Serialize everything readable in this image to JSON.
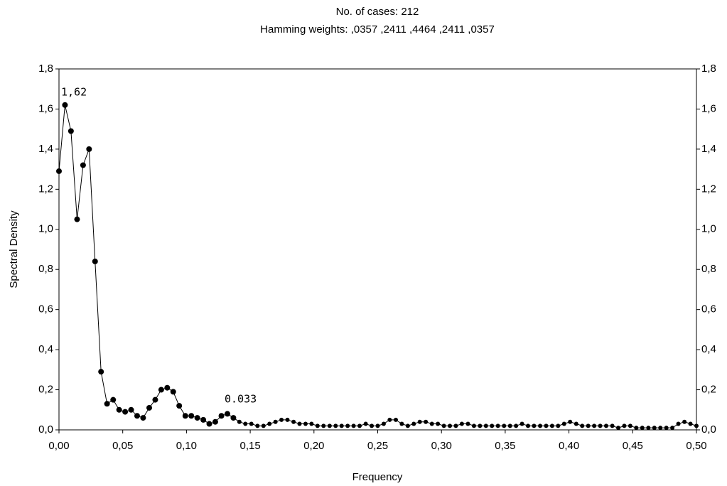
{
  "chart_data": {
    "type": "line",
    "title": "No. of cases: 212",
    "subtitle": "Hamming weights: ,0357 ,2411 ,4464 ,2411 ,0357",
    "x_label": "Frequency",
    "y_label": "Spectral Density",
    "annotations": [
      "1,62",
      "0.033"
    ],
    "color": "#000000",
    "x": [
      0,
      0.0047,
      0.0094,
      0.0142,
      0.0189,
      0.0236,
      0.0283,
      0.033,
      0.0377,
      0.0425,
      0.0472,
      0.0519,
      0.0566,
      0.0613,
      0.066,
      0.0708,
      0.0755,
      0.0802,
      0.0849,
      0.0896,
      0.0943,
      0.0991,
      0.1038,
      0.1085,
      0.1132,
      0.1179,
      0.1226,
      0.1274,
      0.1321,
      0.1368,
      0.1415,
      0.1462,
      0.1509,
      0.1557,
      0.1604,
      0.1651,
      0.1698,
      0.1745,
      0.1792,
      0.184,
      0.1887,
      0.1934,
      0.1981,
      0.2028,
      0.2075,
      0.2123,
      0.217,
      0.2217,
      0.2264,
      0.2311,
      0.2358,
      0.2406,
      0.2453,
      0.25,
      0.2547,
      0.2594,
      0.2642,
      0.2689,
      0.2736,
      0.2783,
      0.283,
      0.2877,
      0.2925,
      0.2972,
      0.3019,
      0.3066,
      0.3113,
      0.316,
      0.3208,
      0.3255,
      0.3302,
      0.3349,
      0.3396,
      0.3443,
      0.3491,
      0.3538,
      0.3585,
      0.3632,
      0.3679,
      0.3726,
      0.3774,
      0.3821,
      0.3868,
      0.3915,
      0.3962,
      0.4009,
      0.4057,
      0.4104,
      0.4151,
      0.4198,
      0.4245,
      0.4292,
      0.434,
      0.4387,
      0.4434,
      0.4481,
      0.4528,
      0.4575,
      0.4623,
      0.467,
      0.4717,
      0.4764,
      0.4811,
      0.4858,
      0.4906,
      0.4953,
      0.5
    ],
    "values": [
      1.29,
      1.62,
      1.49,
      1.05,
      1.32,
      1.4,
      0.84,
      0.29,
      0.13,
      0.15,
      0.1,
      0.09,
      0.1,
      0.07,
      0.06,
      0.11,
      0.15,
      0.2,
      0.21,
      0.19,
      0.12,
      0.07,
      0.07,
      0.06,
      0.05,
      0.03,
      0.04,
      0.07,
      0.08,
      0.06,
      0.04,
      0.03,
      0.03,
      0.02,
      0.02,
      0.03,
      0.04,
      0.05,
      0.05,
      0.04,
      0.03,
      0.03,
      0.03,
      0.02,
      0.02,
      0.02,
      0.02,
      0.02,
      0.02,
      0.02,
      0.02,
      0.03,
      0.02,
      0.02,
      0.03,
      0.05,
      0.05,
      0.03,
      0.02,
      0.03,
      0.04,
      0.04,
      0.03,
      0.03,
      0.02,
      0.02,
      0.02,
      0.03,
      0.03,
      0.02,
      0.02,
      0.02,
      0.02,
      0.02,
      0.02,
      0.02,
      0.02,
      0.03,
      0.02,
      0.02,
      0.02,
      0.02,
      0.02,
      0.02,
      0.03,
      0.04,
      0.03,
      0.02,
      0.02,
      0.02,
      0.02,
      0.02,
      0.02,
      0.01,
      0.02,
      0.02,
      0.01,
      0.01,
      0.01,
      0.01,
      0.01,
      0.01,
      0.01,
      0.03,
      0.04,
      0.03,
      0.02
    ],
    "xlim": [
      0,
      0.5
    ],
    "xticks": [
      {
        "value": 0,
        "label": "0,00"
      },
      {
        "value": 0.05,
        "label": "0,05"
      },
      {
        "value": 0.1,
        "label": "0,10"
      },
      {
        "value": 0.15,
        "label": "0,15"
      },
      {
        "value": 0.2,
        "label": "0,20"
      },
      {
        "value": 0.25,
        "label": "0,25"
      },
      {
        "value": 0.3,
        "label": "0,30"
      },
      {
        "value": 0.35,
        "label": "0,35"
      },
      {
        "value": 0.4,
        "label": "0,40"
      },
      {
        "value": 0.45,
        "label": "0,45"
      },
      {
        "value": 0.5,
        "label": "0,50"
      }
    ],
    "ylim": [
      0,
      1.8
    ],
    "yticks": [
      {
        "value": 0,
        "label": "0,0"
      },
      {
        "value": 0.2,
        "label": "0,2"
      },
      {
        "value": 0.4,
        "label": "0,4"
      },
      {
        "value": 0.6,
        "label": "0,6"
      },
      {
        "value": 0.8,
        "label": "0,8"
      },
      {
        "value": 1,
        "label": "1,0"
      },
      {
        "value": 1.2,
        "label": "1,2"
      },
      {
        "value": 1.4,
        "label": "1,4"
      },
      {
        "value": 1.6,
        "label": "1,6"
      },
      {
        "value": 1.8,
        "label": "1,8"
      }
    ],
    "y2lim": [
      0,
      1.8
    ],
    "y2ticks": [
      {
        "value": 0,
        "label": "0,0"
      },
      {
        "value": 0.2,
        "label": "0,2"
      },
      {
        "value": 0.4,
        "label": "0,4"
      },
      {
        "value": 0.6,
        "label": "0,6"
      },
      {
        "value": 0.8,
        "label": "0,8"
      },
      {
        "value": 1,
        "label": "1,0"
      },
      {
        "value": 1.2,
        "label": "1,2"
      },
      {
        "value": 1.4,
        "label": "1,4"
      },
      {
        "value": 1.6,
        "label": "1,6"
      },
      {
        "value": 1.8,
        "label": "1,8"
      }
    ],
    "grid": false
  }
}
